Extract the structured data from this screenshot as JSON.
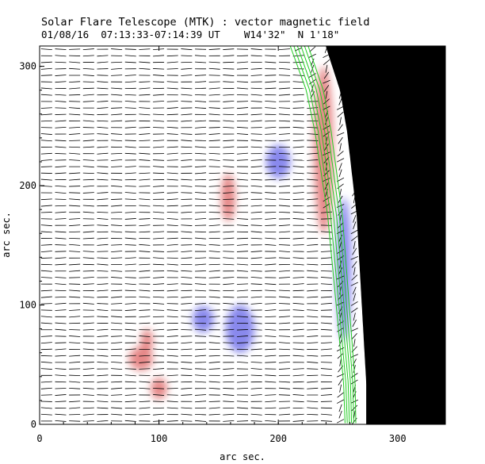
{
  "chart_data": {
    "type": "image",
    "title": "Solar Flare Telescope (MTK) : vector magnetic field",
    "subtitle_date": "01/08/16",
    "subtitle_time": "07:13:33-07:14:39 UT",
    "subtitle_position": "W14'32\"  N 1'18\"",
    "xlabel": "arc sec.",
    "ylabel": "arc sec.",
    "xlim": [
      0,
      340
    ],
    "ylim": [
      0,
      317
    ],
    "xticks": [
      0,
      100,
      200,
      300
    ],
    "yticks": [
      0,
      100,
      200,
      300
    ],
    "limb": {
      "description": "solar limb (off-disk region black)",
      "points": [
        [
          240,
          317
        ],
        [
          252,
          280
        ],
        [
          258,
          245
        ],
        [
          262,
          210
        ],
        [
          266,
          175
        ],
        [
          268,
          140
        ],
        [
          270,
          105
        ],
        [
          272,
          70
        ],
        [
          274,
          35
        ],
        [
          274,
          0
        ]
      ]
    },
    "contours_green": {
      "offsets": [
        -30,
        -27,
        -24,
        -21,
        -18,
        -15
      ]
    },
    "polarity_patches": [
      {
        "polarity": "positive",
        "x": 158,
        "y": 190,
        "rx": 6,
        "ry": 20
      },
      {
        "polarity": "negative",
        "x": 200,
        "y": 220,
        "rx": 10,
        "ry": 14
      },
      {
        "polarity": "negative",
        "x": 168,
        "y": 80,
        "rx": 12,
        "ry": 20
      },
      {
        "polarity": "negative",
        "x": 137,
        "y": 88,
        "rx": 9,
        "ry": 11
      },
      {
        "polarity": "positive",
        "x": 85,
        "y": 55,
        "rx": 10,
        "ry": 10
      },
      {
        "polarity": "positive",
        "x": 100,
        "y": 30,
        "rx": 7,
        "ry": 9
      },
      {
        "polarity": "positive",
        "x": 90,
        "y": 70,
        "rx": 5,
        "ry": 10
      },
      {
        "polarity": "positive",
        "x": 238,
        "y": 230,
        "rx": 8,
        "ry": 70
      },
      {
        "polarity": "negative",
        "x": 255,
        "y": 130,
        "rx": 6,
        "ry": 60
      }
    ],
    "vector_rows": 58,
    "vector_cols": 29
  },
  "colors": {
    "positive": "#e06a6a",
    "negative": "#6a6ae8",
    "contour": "#22cc22",
    "offdisk": "#000000"
  }
}
